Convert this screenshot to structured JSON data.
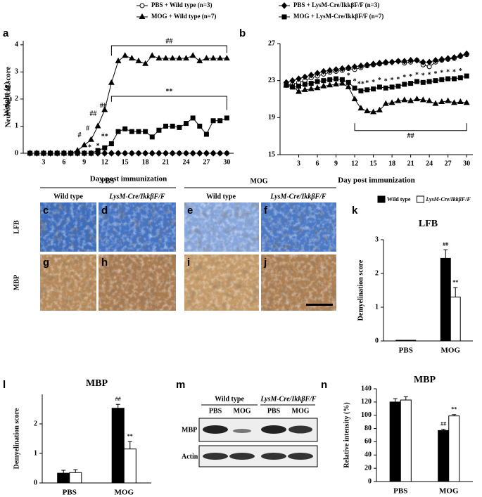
{
  "chart_data": [
    {
      "type": "line",
      "panel": "a",
      "xlabel": "Day post immunization",
      "ylabel": "Neurological score",
      "x": [
        1,
        2,
        3,
        4,
        5,
        6,
        7,
        8,
        9,
        10,
        11,
        12,
        13,
        14,
        15,
        16,
        17,
        18,
        19,
        20,
        21,
        22,
        23,
        24,
        25,
        26,
        27,
        28,
        29,
        30
      ],
      "series": [
        {
          "name": "PBS + Wild type (n=3)",
          "color": "#000000",
          "marker": "open-circle",
          "values": [
            0,
            0,
            0,
            0,
            0,
            0,
            0,
            0,
            0,
            0,
            0,
            0,
            0,
            0,
            0,
            0,
            0,
            0,
            0,
            0,
            0,
            0,
            0,
            0,
            0,
            0,
            0,
            0,
            0,
            0
          ]
        },
        {
          "name": "PBS + LysM-Cre/IkkβF/F (n=3)",
          "color": "#000000",
          "marker": "diamond",
          "values": [
            0,
            0,
            0,
            0,
            0,
            0,
            0,
            0,
            0,
            0,
            0,
            0,
            0,
            0,
            0,
            0,
            0,
            0,
            0,
            0,
            0,
            0,
            0,
            0,
            0,
            0,
            0,
            0,
            0,
            0
          ]
        },
        {
          "name": "MOG + Wild type (n=7)",
          "color": "#000000",
          "marker": "triangle",
          "values": [
            0,
            0,
            0,
            0,
            0,
            0,
            0,
            0.1,
            0.3,
            0.5,
            1.0,
            1.6,
            2.6,
            3.4,
            3.6,
            3.5,
            3.4,
            3.3,
            3.6,
            3.5,
            3.5,
            3.5,
            3.5,
            3.5,
            3.6,
            3.4,
            3.5,
            3.5,
            3.5,
            3.5
          ]
        },
        {
          "name": "MOG + LysM-Cre/IkkβF/F (n=7)",
          "color": "#000000",
          "marker": "square",
          "values": [
            0,
            0,
            0,
            0,
            0,
            0,
            0,
            0,
            0,
            0,
            0.1,
            0.2,
            0.35,
            0.8,
            0.9,
            0.8,
            0.8,
            0.8,
            0.6,
            0.85,
            1.0,
            1.0,
            0.95,
            1.1,
            1.3,
            1.0,
            0.7,
            1.2,
            1.2,
            1.3
          ]
        }
      ],
      "xlim": [
        0,
        31
      ],
      "xticks": [
        3,
        6,
        9,
        12,
        15,
        18,
        21,
        24,
        27,
        30
      ],
      "ylim": [
        0,
        4.15
      ],
      "yticks": [
        0,
        1,
        2,
        3,
        4
      ],
      "annotations": [
        "##",
        "**",
        "#",
        "#",
        "##",
        "##",
        "*",
        "*",
        "**"
      ]
    },
    {
      "type": "line",
      "panel": "b",
      "xlabel": "Day post immunization",
      "ylabel": "Weight (g)",
      "x": [
        1,
        2,
        3,
        4,
        5,
        6,
        7,
        8,
        9,
        10,
        11,
        12,
        13,
        14,
        15,
        16,
        17,
        18,
        19,
        20,
        21,
        22,
        23,
        24,
        25,
        26,
        27,
        28,
        29,
        30
      ],
      "series": [
        {
          "color": "#000000",
          "marker": "open-circle",
          "values": [
            22.5,
            22.6,
            22.8,
            23.0,
            23.3,
            23.5,
            23.7,
            23.9,
            24.0,
            24.1,
            24.3,
            24.2,
            24.4,
            24.6,
            24.7,
            24.8,
            24.9,
            25.0,
            25.1,
            24.9,
            25.0,
            25.2,
            24.7,
            24.5,
            25.0,
            25.2,
            25.3,
            25.4,
            25.6,
            25.8
          ]
        },
        {
          "color": "#000000",
          "marker": "diamond",
          "values": [
            22.8,
            23.0,
            23.2,
            23.4,
            23.6,
            23.8,
            24.0,
            24.1,
            24.2,
            24.3,
            24.4,
            24.5,
            24.6,
            24.7,
            24.8,
            24.9,
            25.0,
            25.0,
            25.1,
            25.1,
            25.2,
            25.2,
            25.0,
            25.0,
            25.2,
            25.3,
            25.4,
            25.5,
            25.7,
            25.9
          ]
        },
        {
          "color": "#000000",
          "marker": "triangle",
          "values": [
            22.5,
            22.4,
            21.8,
            22.0,
            22.1,
            22.2,
            22.4,
            22.5,
            22.6,
            22.7,
            22.3,
            21.0,
            20.0,
            19.7,
            19.6,
            19.8,
            20.5,
            20.6,
            20.8,
            20.9,
            20.8,
            21.0,
            20.9,
            20.8,
            20.5,
            20.7,
            20.8,
            20.6,
            20.7,
            20.6
          ]
        },
        {
          "color": "#000000",
          "marker": "square",
          "values": [
            22.5,
            22.3,
            22.4,
            22.6,
            22.7,
            22.9,
            23.0,
            23.1,
            23.2,
            23.1,
            22.8,
            22.2,
            21.9,
            22.0,
            22.1,
            22.3,
            22.2,
            22.3,
            22.4,
            22.6,
            22.7,
            22.9,
            22.8,
            22.9,
            23.0,
            23.1,
            23.2,
            23.2,
            23.3,
            23.5
          ]
        }
      ],
      "xlim": [
        0,
        31
      ],
      "xticks": [
        3,
        6,
        9,
        12,
        15,
        18,
        21,
        24,
        27,
        30
      ],
      "ylim": [
        15,
        27
      ],
      "yticks": [
        15,
        19,
        23,
        27
      ],
      "annotations": [
        "##",
        "*",
        "*",
        "**",
        "*",
        "*",
        "*",
        "*",
        "*",
        "*",
        "*",
        "*",
        "*",
        "*",
        "*",
        "*",
        "*",
        "*",
        "*",
        "*"
      ]
    },
    {
      "type": "bar",
      "panel": "k",
      "title": "LFB",
      "ylabel": "Demyelination score",
      "categories": [
        "PBS",
        "MOG"
      ],
      "series": [
        {
          "name": "Wild type",
          "color": "#000000",
          "values": [
            0.02,
            2.45
          ],
          "errors": [
            0,
            0.25
          ],
          "annotation": "##"
        },
        {
          "name": "LysM-Cre/IkkβF/F",
          "color": "#ffffff",
          "values": [
            0.02,
            1.3
          ],
          "errors": [
            0,
            0.28
          ],
          "annotation": "**"
        }
      ],
      "ylim": [
        0,
        3
      ],
      "yticks": [
        0,
        1,
        2,
        3
      ]
    },
    {
      "type": "bar",
      "panel": "l",
      "title": "MBP",
      "ylabel": "Demyelination score",
      "categories": [
        "PBS",
        "MOG"
      ],
      "series": [
        {
          "color": "#000000",
          "values": [
            0.33,
            2.53
          ],
          "errors": [
            0.1,
            0.13
          ],
          "annotation": "##"
        },
        {
          "color": "#ffffff",
          "values": [
            0.35,
            1.15
          ],
          "errors": [
            0.1,
            0.25
          ],
          "annotation": "**"
        }
      ],
      "ylim": [
        0,
        3
      ],
      "yticks": [
        0,
        1,
        2
      ]
    },
    {
      "type": "bar",
      "panel": "n",
      "title": "MBP",
      "ylabel": "Relative intensity (%)",
      "categories": [
        "PBS",
        "MOG"
      ],
      "series": [
        {
          "color": "#000000",
          "values": [
            120,
            77
          ],
          "errors": [
            5,
            2
          ],
          "annotation": "##"
        },
        {
          "color": "#ffffff",
          "values": [
            123,
            99
          ],
          "errors": [
            5,
            2
          ],
          "annotation": "**"
        }
      ],
      "ylim": [
        0,
        140
      ],
      "yticks": [
        0,
        20,
        40,
        60,
        80,
        100,
        120,
        140
      ]
    }
  ],
  "histology": {
    "groups": [
      "PBS",
      "MOG"
    ],
    "genotypes": [
      "Wild type",
      "LysM-Cre/IkkβF/F",
      "Wild type",
      "LysM-Cre/IkkβF/F"
    ],
    "rows": [
      {
        "label": "LFB",
        "panels": [
          "c",
          "d",
          "e",
          "f"
        ]
      },
      {
        "label": "MBP",
        "panels": [
          "g",
          "h",
          "i",
          "j"
        ]
      }
    ]
  },
  "western_blot": {
    "panel": "m",
    "groups": [
      "Wild type",
      "LysM-Cre/IkkβF/F"
    ],
    "lanes": [
      "PBS",
      "MOG",
      "PBS",
      "MOG"
    ],
    "rows": [
      "MBP",
      "Actin"
    ]
  }
}
